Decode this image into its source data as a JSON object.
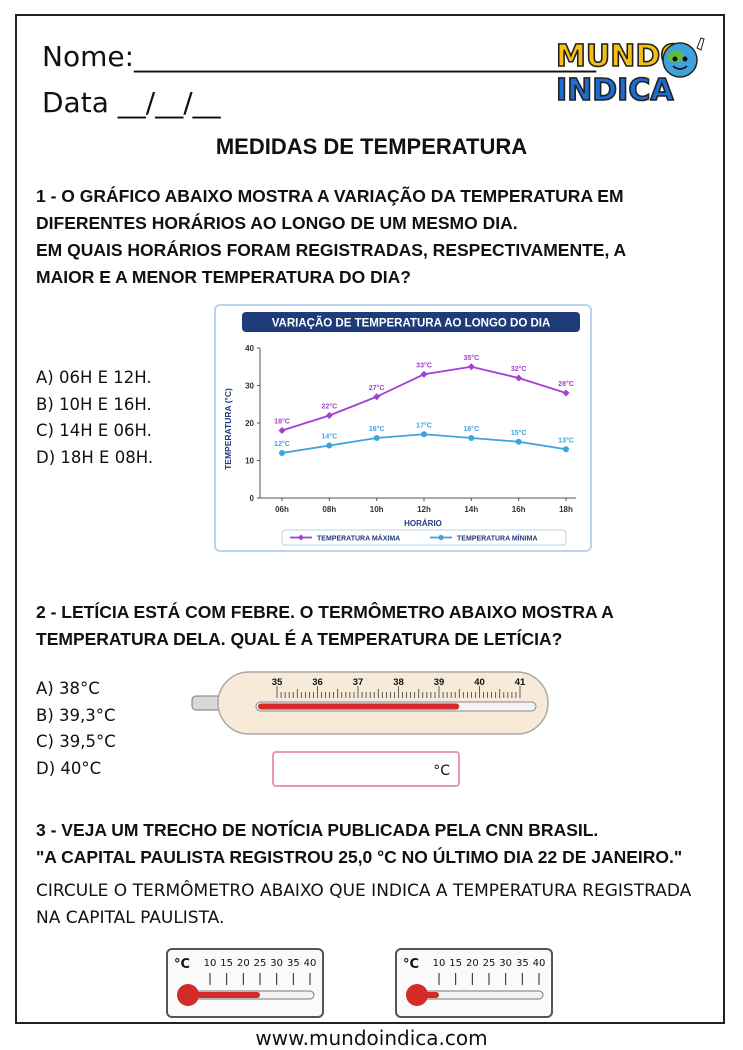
{
  "header": {
    "name_label": "Nome:_________________________________",
    "date_label": "Data __/__/__",
    "logo_line1": "MUNDO",
    "logo_line2": "INDICA"
  },
  "title": "MEDIDAS DE TEMPERATURA",
  "q1": {
    "lines": [
      "1 - O GRÁFICO ABAIXO MOSTRA A VARIAÇÃO DA TEMPERATURA EM",
      "DIFERENTES HORÁRIOS AO LONGO DE UM MESMO DIA.",
      "EM QUAIS HORÁRIOS FORAM REGISTRADAS, RESPECTIVAMENTE, A",
      "MAIOR E A MENOR TEMPERATURA DO DIA?"
    ],
    "options": [
      "A) 06H E 12H.",
      "B) 10H E 16H.",
      "C) 14H E 06H.",
      "D) 18H E 08H."
    ]
  },
  "chart_data": {
    "type": "line",
    "title": "VARIAÇÃO DE TEMPERATURA AO LONGO DO DIA",
    "xlabel": "HORÁRIO",
    "ylabel": "TEMPERATURA (°C)",
    "ylim": [
      0,
      40
    ],
    "yticks": [
      "0",
      "10",
      "20",
      "30",
      "40"
    ],
    "categories": [
      "06h",
      "08h",
      "10h",
      "12h",
      "14h",
      "16h",
      "18h"
    ],
    "series": [
      {
        "name": "TEMPERATURA MÁXIMA",
        "color": "#a23fd6",
        "values": [
          18,
          22,
          27,
          33,
          35,
          32,
          28
        ],
        "labels": [
          "18°C",
          "22°C",
          "27°C",
          "33°C",
          "35°C",
          "32°C",
          "28°C"
        ]
      },
      {
        "name": "TEMPERATURA MÍNIMA",
        "color": "#3ea3dd",
        "values": [
          12,
          14,
          16,
          17,
          16,
          15,
          13
        ],
        "labels": [
          "12°C",
          "14°C",
          "16°C",
          "17°C",
          "16°C",
          "15°C",
          "13°C"
        ]
      }
    ],
    "legend": "bottom",
    "grid": false,
    "title_bg": "#1f3c7a"
  },
  "q2": {
    "lines": [
      "2 - LETÍCIA ESTÁ COM FEBRE. O TERMÔMETRO ABAIXO MOSTRA A",
      "TEMPERATURA DELA. QUAL É A TEMPERATURA DE LETÍCIA?"
    ],
    "options": [
      "A) 38°C",
      "B) 39,3°C",
      "C) 39,5°C",
      "D) 40°C"
    ],
    "thermometer": {
      "scale": [
        "35",
        "36",
        "37",
        "38",
        "39",
        "40",
        "41"
      ],
      "reading": 39.5,
      "liquid_color": "#d32a2a"
    },
    "answer_unit": "°C"
  },
  "q3": {
    "lines": [
      "3 - VEJA UM TRECHO DE NOTÍCIA PUBLICADA PELA CNN BRASIL.",
      "\"A CAPITAL PAULISTA REGISTROU 25,0 °C NO ÚLTIMO DIA 22 DE JANEIRO.\""
    ],
    "instruction_lines": [
      "CIRCULE O TERMÔMETRO ABAIXO QUE INDICA A TEMPERATURA REGISTRADA",
      "NA CAPITAL PAULISTA."
    ],
    "thermometers": [
      {
        "unit": "°C",
        "scale": [
          "10",
          "15",
          "20",
          "25",
          "30",
          "35",
          "40"
        ],
        "reading": 25
      },
      {
        "unit": "°C",
        "scale": [
          "10",
          "15",
          "20",
          "25",
          "30",
          "35",
          "40"
        ],
        "reading": 10
      }
    ]
  },
  "footer": "www.mundoindica.com"
}
